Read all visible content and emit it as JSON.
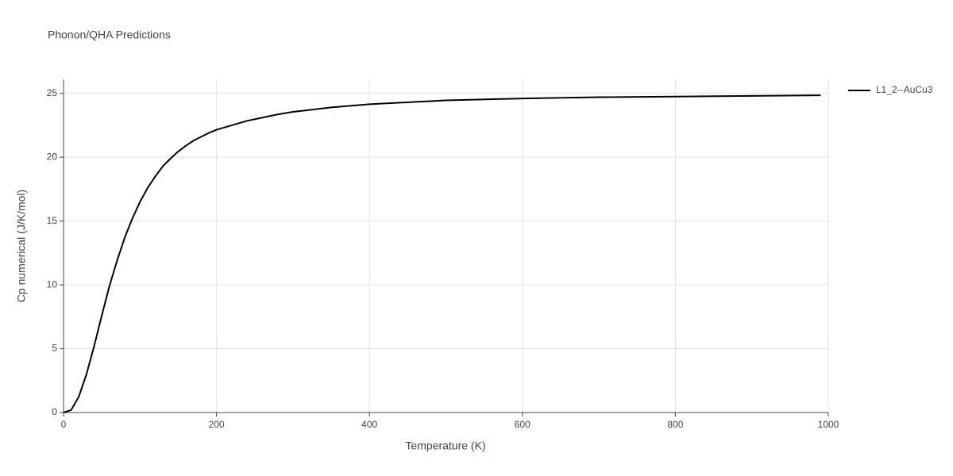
{
  "chart_data": {
    "type": "line",
    "title": "Phonon/QHA Predictions",
    "x_label": "Temperature (K)",
    "y_label": "Cp numerical (J/K/mol)",
    "x": [
      0,
      10,
      20,
      30,
      40,
      50,
      60,
      70,
      80,
      90,
      100,
      110,
      120,
      130,
      140,
      150,
      160,
      170,
      180,
      190,
      200,
      220,
      240,
      260,
      280,
      300,
      350,
      400,
      500,
      600,
      700,
      800,
      900,
      990
    ],
    "series": [
      {
        "name": "L1_2--AuCu3",
        "color": "#000000",
        "values": [
          0,
          0.2,
          1.25,
          3.0,
          5.2,
          7.6,
          9.9,
          11.9,
          13.7,
          15.2,
          16.5,
          17.6,
          18.5,
          19.3,
          19.9,
          20.45,
          20.9,
          21.3,
          21.6,
          21.9,
          22.15,
          22.5,
          22.85,
          23.1,
          23.35,
          23.55,
          23.9,
          24.15,
          24.45,
          24.6,
          24.7,
          24.75,
          24.8,
          24.85
        ]
      }
    ],
    "xlim": [
      0,
      1000
    ],
    "xticks": [
      0,
      200,
      400,
      600,
      800,
      1000
    ],
    "ylim": [
      0,
      26.1
    ],
    "yticks": [
      0,
      5,
      10,
      15,
      20,
      25
    ],
    "grid": true,
    "legend": "right"
  }
}
